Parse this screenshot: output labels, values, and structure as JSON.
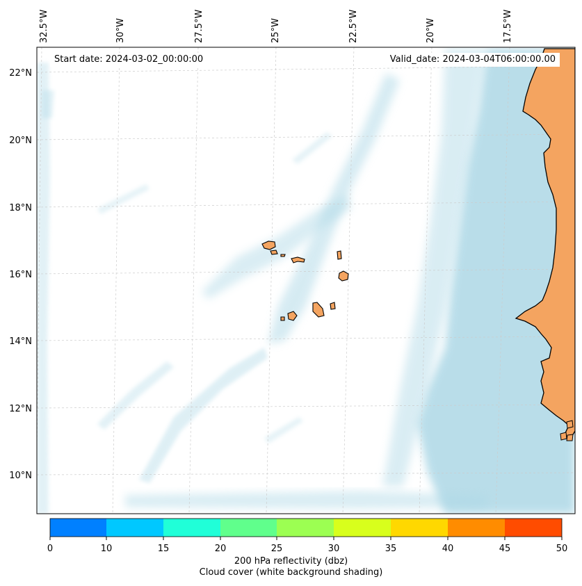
{
  "header": {
    "start_date": "Start date: 2024-03-02_00:00:00",
    "valid_date": "Valid_date: 2024-03-04T06:00:00.00"
  },
  "map": {
    "region": "Eastern tropical North Atlantic (Cape Verde region)",
    "lon_labels": [
      "32.5°W",
      "30°W",
      "27.5°W",
      "25°W",
      "22.5°W",
      "20°W",
      "17.5°W"
    ],
    "lat_labels": [
      "22°N",
      "20°N",
      "18°N",
      "16°N",
      "14°N",
      "12°N",
      "10°N"
    ],
    "colors": {
      "land": "#f4a460",
      "cloud": "#add8e6",
      "coastline": "#000000",
      "grid": "#cccccc"
    }
  },
  "colorbar": {
    "ticks": [
      "0",
      "10",
      "15",
      "20",
      "25",
      "30",
      "35",
      "40",
      "45",
      "50"
    ],
    "colors": [
      "#0080ff",
      "#00c8ff",
      "#20ffd8",
      "#60ff8c",
      "#9cff52",
      "#d8ff1c",
      "#ffd800",
      "#ff8c00",
      "#ff4c00"
    ],
    "label_line1": "200 hPa reflectivity (dbz)",
    "label_line2": "Cloud cover (white background shading)"
  }
}
